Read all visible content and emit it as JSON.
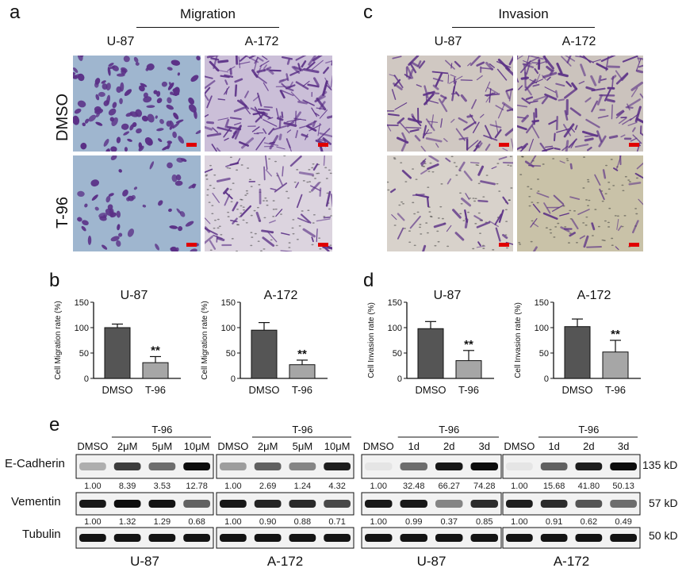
{
  "panel_a": {
    "letter": "a",
    "header": "Migration",
    "columns": [
      "U-87",
      "A-172"
    ],
    "rows": [
      "DMSO",
      "T-96"
    ]
  },
  "panel_c": {
    "letter": "c",
    "header": "Invasion",
    "columns": [
      "U-87",
      "A-172"
    ]
  },
  "panel_b": {
    "letter": "b"
  },
  "panel_d": {
    "letter": "d"
  },
  "panel_e": {
    "letter": "e"
  },
  "colors": {
    "dmso_bar": "#555555",
    "t96_bar": "#a6a6a6",
    "migration_u87_bg": "#9fb6cf",
    "migration_a172_bg": "#d6cddf",
    "invasion_bg": "#d3cbc4",
    "stain": "#5a2f86",
    "scale_bar": "#e00000"
  },
  "chart_data": [
    {
      "type": "bar",
      "title": "U-87",
      "ylabel": "Cell Migration rate (%)",
      "categories": [
        "DMSO",
        "T-96"
      ],
      "values": [
        100,
        31
      ],
      "errors": [
        7,
        12
      ],
      "significance": [
        "",
        "**"
      ],
      "ylim": [
        0,
        150
      ],
      "yticks": [
        0,
        50,
        100,
        150
      ]
    },
    {
      "type": "bar",
      "title": "A-172",
      "ylabel": "Cell Migration rate (%)",
      "categories": [
        "DMSO",
        "T-96"
      ],
      "values": [
        95,
        27
      ],
      "errors": [
        15,
        9
      ],
      "significance": [
        "",
        "**"
      ],
      "ylim": [
        0,
        150
      ],
      "yticks": [
        0,
        50,
        100,
        150
      ]
    },
    {
      "type": "bar",
      "title": "U-87",
      "ylabel": "Cell Invasion rate (%)",
      "categories": [
        "DMSO",
        "T-96"
      ],
      "values": [
        98,
        35
      ],
      "errors": [
        14,
        20
      ],
      "significance": [
        "",
        "**"
      ],
      "ylim": [
        0,
        150
      ],
      "yticks": [
        0,
        50,
        100,
        150
      ]
    },
    {
      "type": "bar",
      "title": "A-172",
      "ylabel": "Cell Invasion rate (%)",
      "categories": [
        "DMSO",
        "T-96"
      ],
      "values": [
        102,
        52
      ],
      "errors": [
        15,
        23
      ],
      "significance": [
        "",
        "**"
      ],
      "ylim": [
        0,
        150
      ],
      "yticks": [
        0,
        50,
        100,
        150
      ]
    }
  ],
  "western": {
    "proteins": [
      "E-Cadherin",
      "Vementin",
      "Tubulin"
    ],
    "kd": [
      "135 kD",
      "57 kD",
      "50 kD"
    ],
    "groups": [
      {
        "treatment": "T-96",
        "lanes": [
          "DMSO",
          "2μM",
          "5μM",
          "10μM"
        ],
        "cell": "U-87",
        "ecad": [
          "1.00",
          "8.39",
          "3.53",
          "12.78"
        ],
        "vim": [
          "1.00",
          "1.32",
          "1.29",
          "0.68"
        ],
        "ecad_int": [
          0.28,
          0.75,
          0.55,
          0.95
        ],
        "vim_int": [
          0.9,
          0.95,
          0.92,
          0.6
        ],
        "tub_int": [
          0.92,
          0.92,
          0.92,
          0.92
        ]
      },
      {
        "treatment": "T-96",
        "lanes": [
          "DMSO",
          "2μM",
          "5μM",
          "10μM"
        ],
        "cell": "A-172",
        "ecad": [
          "1.00",
          "2.69",
          "1.24",
          "4.32"
        ],
        "vim": [
          "1.00",
          "0.90",
          "0.88",
          "0.71"
        ],
        "ecad_int": [
          0.35,
          0.6,
          0.45,
          0.88
        ],
        "vim_int": [
          0.9,
          0.85,
          0.83,
          0.7
        ],
        "tub_int": [
          0.92,
          0.92,
          0.92,
          0.92
        ]
      },
      {
        "treatment": "T-96",
        "lanes": [
          "DMSO",
          "1d",
          "2d",
          "3d"
        ],
        "cell": "U-87",
        "ecad": [
          "1.00",
          "32.48",
          "66.27",
          "74.28"
        ],
        "vim": [
          "1.00",
          "0.99",
          "0.37",
          "0.85"
        ],
        "ecad_int": [
          0.05,
          0.55,
          0.9,
          0.95
        ],
        "vim_int": [
          0.9,
          0.9,
          0.45,
          0.82
        ],
        "tub_int": [
          0.92,
          0.92,
          0.92,
          0.92
        ]
      },
      {
        "treatment": "T-96",
        "lanes": [
          "DMSO",
          "1d",
          "2d",
          "3d"
        ],
        "cell": "A-172",
        "ecad": [
          "1.00",
          "15.68",
          "41.80",
          "50.13"
        ],
        "vim": [
          "1.00",
          "0.91",
          "0.62",
          "0.49"
        ],
        "ecad_int": [
          0.05,
          0.6,
          0.88,
          0.95
        ],
        "vim_int": [
          0.88,
          0.82,
          0.65,
          0.55
        ],
        "tub_int": [
          0.92,
          0.92,
          0.92,
          0.92
        ]
      }
    ]
  }
}
